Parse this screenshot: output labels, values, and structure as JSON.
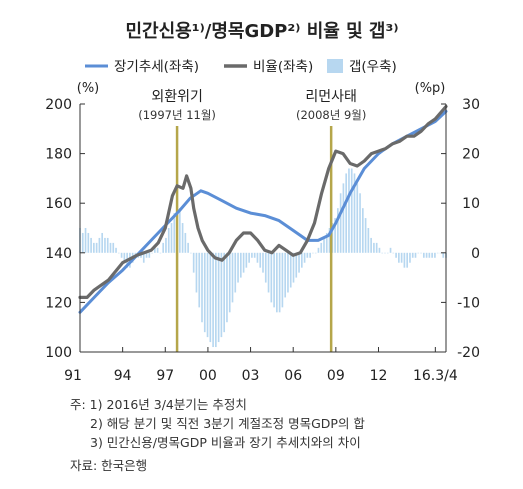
{
  "chart_data": {
    "type": "line",
    "title": "민간신용¹⁾/명목GDP²⁾ 비율 및 갭³⁾",
    "legend": {
      "placement": "top",
      "entries": [
        "장기추세(좌축)",
        "비율(좌축)",
        "갭(우축)"
      ]
    },
    "left_axis": {
      "unit": "(%)",
      "ylim": [
        100,
        200
      ],
      "ticks": [
        "200",
        "180",
        "160",
        "140",
        "120",
        "100"
      ]
    },
    "right_axis": {
      "unit": "(%p)",
      "ylim": [
        -20,
        30
      ],
      "ticks": [
        "30",
        "20",
        "10",
        "0",
        "-10",
        "-20"
      ]
    },
    "x_tick_labels": [
      "91",
      "94",
      "97",
      "00",
      "03",
      "06",
      "09",
      "12",
      "16.3/4"
    ],
    "annotations": [
      {
        "label": "외환위기",
        "sublabel": "(1997년 11월)",
        "x": 1997.83
      },
      {
        "label": "리먼사태",
        "sublabel": "(2008년 9월)",
        "x": 2008.67
      }
    ],
    "series": [
      {
        "name": "장기추세(좌축)",
        "axis": "left",
        "color": "#5b8ed6",
        "x": [
          1991,
          1992,
          1993,
          1994,
          1995,
          1996,
          1997,
          1998,
          1998.75,
          1999.5,
          2000,
          2001,
          2002,
          2003,
          2004,
          2005,
          2005.75,
          2006.5,
          2007,
          2007.75,
          2008.5,
          2009,
          2010,
          2011,
          2012,
          2013,
          2014,
          2015,
          2016,
          2016.75
        ],
        "values": [
          116,
          122,
          128,
          133,
          139,
          145,
          151,
          157,
          162,
          165,
          164,
          161,
          158,
          156,
          155,
          153,
          150,
          147,
          145,
          145,
          147,
          152,
          164,
          174,
          180,
          184,
          187,
          190,
          193,
          197
        ]
      },
      {
        "name": "비율(좌축)",
        "axis": "left",
        "color": "#6a6a6a",
        "x": [
          1991,
          1991.5,
          1992,
          1993,
          1994,
          1995,
          1996,
          1996.5,
          1997,
          1997.5,
          1997.83,
          1998.25,
          1998.5,
          1998.8,
          1999,
          1999.3,
          1999.6,
          2000,
          2000.5,
          2001,
          2001.5,
          2002,
          2002.5,
          2003,
          2003.5,
          2004,
          2004.5,
          2005,
          2005.5,
          2006,
          2006.5,
          2007,
          2007.5,
          2008,
          2008.5,
          2009,
          2009.5,
          2010,
          2010.5,
          2011,
          2011.5,
          2012,
          2012.5,
          2013,
          2013.5,
          2014,
          2014.5,
          2015,
          2015.5,
          2016,
          2016.75
        ],
        "values": [
          122,
          122,
          125,
          129,
          136,
          139,
          141,
          144,
          150,
          163,
          167,
          166,
          171,
          166,
          158,
          150,
          145,
          141,
          138,
          137,
          140,
          145,
          148,
          148,
          145,
          141,
          140,
          143,
          141,
          139,
          140,
          145,
          152,
          164,
          174,
          181,
          180,
          176,
          175,
          177,
          180,
          181,
          182,
          184,
          185,
          187,
          187,
          189,
          192,
          194,
          199
        ]
      }
    ],
    "gap_bars": {
      "name": "갭(우축)",
      "axis": "right",
      "color": "#b7d7f0",
      "x_start": 1991,
      "x_end": 2016.75,
      "values": [
        5,
        4,
        5,
        4,
        3,
        2,
        2,
        3,
        4,
        3,
        3,
        2,
        2,
        1,
        0,
        -1,
        -2,
        -3,
        -3,
        -2,
        -1,
        -1,
        -1,
        -2,
        -1,
        -1,
        0,
        1,
        1,
        0,
        2,
        3,
        5,
        6,
        8,
        9,
        9,
        6,
        4,
        2,
        0,
        -4,
        -8,
        -11,
        -14,
        -16,
        -17,
        -18,
        -19,
        -19,
        -18,
        -17,
        -16,
        -14,
        -12,
        -10,
        -8,
        -6,
        -5,
        -4,
        -3,
        -2,
        -1,
        -1,
        -2,
        -3,
        -4,
        -6,
        -8,
        -10,
        -11,
        -12,
        -12,
        -11,
        -9,
        -8,
        -7,
        -6,
        -5,
        -4,
        -3,
        -2,
        -1,
        -1,
        0,
        0,
        1,
        2,
        3,
        4,
        5,
        6,
        7,
        9,
        12,
        14,
        16,
        17,
        17,
        16,
        14,
        12,
        9,
        7,
        5,
        3,
        2,
        2,
        1,
        0,
        0,
        0,
        1,
        0,
        -1,
        -2,
        -2,
        -3,
        -3,
        -2,
        -1,
        -1,
        0,
        0,
        -1,
        -1,
        -1,
        -1,
        -1,
        0,
        0,
        -1,
        -1
      ]
    }
  },
  "notes": {
    "n1": "주: 1) 2016년 3/4분기는 추정치",
    "n2": "2) 해당 분기 및 직전 3분기 계절조정 명목GDP의 합",
    "n3": "3) 민간신용/명목GDP 비율과 장기 추세치와의 차이",
    "source": "자료: 한국은행"
  }
}
